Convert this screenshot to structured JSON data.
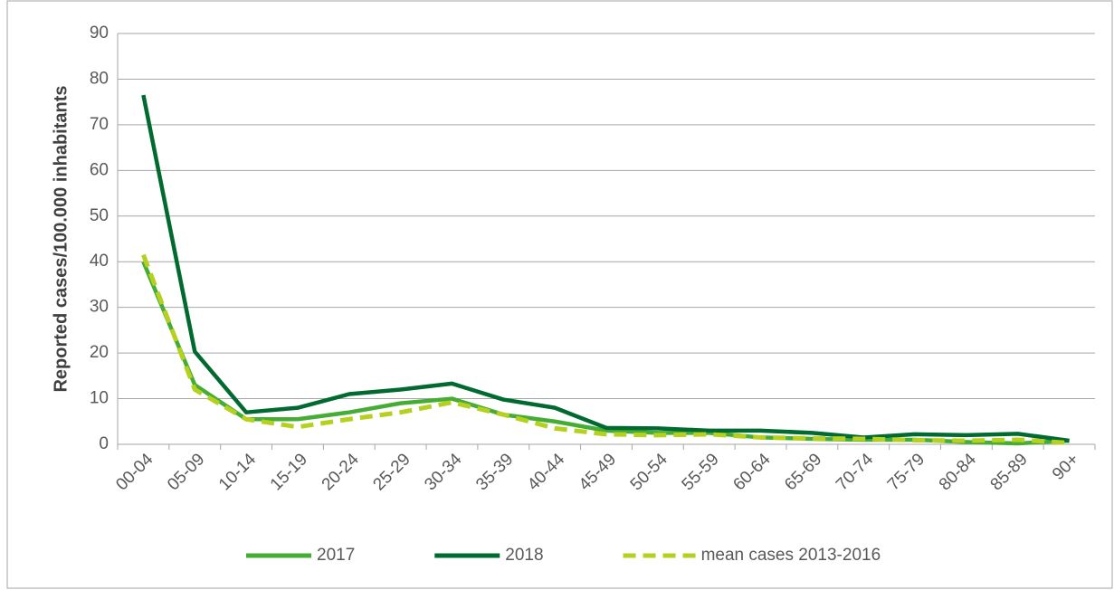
{
  "chart_data": {
    "type": "line",
    "y_label": "Reported cases/100.000 inhabitants",
    "categories": [
      "00-04",
      "05-09",
      "10-14",
      "15-19",
      "20-24",
      "25-29",
      "30-34",
      "35-39",
      "40-44",
      "45-49",
      "50-54",
      "55-59",
      "60-64",
      "65-69",
      "70-74",
      "75-79",
      "80-84",
      "85-89",
      "90+"
    ],
    "series": [
      {
        "name": "2017",
        "color": "#45ad35",
        "dashed": false,
        "values": [
          40,
          13,
          5.5,
          5.5,
          7,
          9,
          10,
          6.5,
          5,
          3,
          2.5,
          2.5,
          1.5,
          1.2,
          1,
          1,
          0.5,
          0.2,
          0.8
        ]
      },
      {
        "name": "2018",
        "color": "#006a30",
        "dashed": false,
        "values": [
          76.5,
          20.3,
          7,
          8,
          11,
          12,
          13.3,
          9.8,
          8,
          3.6,
          3.5,
          3,
          3,
          2.5,
          1.5,
          2.2,
          2,
          2.3,
          0.8
        ]
      },
      {
        "name": "mean cases 2013-2016",
        "color": "#b6d020",
        "dashed": true,
        "values": [
          41.5,
          12,
          5.5,
          3.8,
          5.5,
          7,
          9.2,
          6.5,
          3.5,
          2.2,
          2,
          2.2,
          1.5,
          1.3,
          1.2,
          0.9,
          0.8,
          1,
          0.3
        ]
      }
    ],
    "ylim": [
      0,
      90
    ],
    "yticks": [
      0,
      10,
      20,
      30,
      40,
      50,
      60,
      70,
      80,
      90
    ],
    "grid": true,
    "legend": "bottom"
  }
}
